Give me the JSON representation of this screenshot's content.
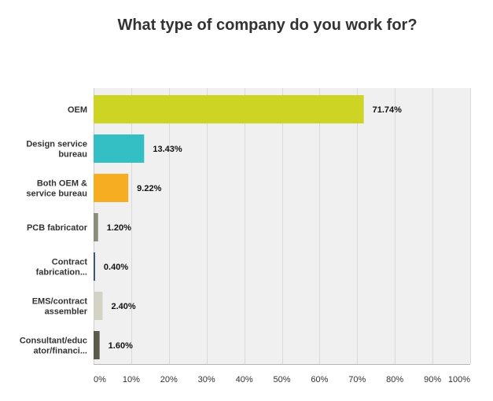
{
  "chart_data": {
    "type": "bar",
    "orientation": "horizontal",
    "title": "What type of company do you work for?",
    "categories": [
      [
        "OEM"
      ],
      [
        "Design service",
        "bureau"
      ],
      [
        "Both OEM &",
        "service bureau"
      ],
      [
        "PCB fabricator"
      ],
      [
        "Contract",
        "fabrication..."
      ],
      [
        "EMS/contract",
        "assembler"
      ],
      [
        "Consultant/educ",
        "ator/financi..."
      ]
    ],
    "values": [
      71.74,
      13.43,
      9.22,
      1.2,
      0.4,
      2.4,
      1.6
    ],
    "value_labels": [
      "71.74%",
      "13.43%",
      "9.22%",
      "1.20%",
      "0.40%",
      "2.40%",
      "1.60%"
    ],
    "colors": [
      "#cdd424",
      "#33bfc3",
      "#f7ad22",
      "#8b8d7c",
      "#2f4f7a",
      "#d2d3c4",
      "#5a5a4d"
    ],
    "xlim": [
      0,
      100
    ],
    "xticks": [
      0,
      10,
      20,
      30,
      40,
      50,
      60,
      70,
      80,
      90,
      100
    ],
    "xtick_labels": [
      "0%",
      "10%",
      "20%",
      "30%",
      "40%",
      "50%",
      "60%",
      "70%",
      "80%",
      "90%",
      "100%"
    ],
    "xlabel": "",
    "ylabel": "",
    "grid": true,
    "legend": "none",
    "plot_background": "#f0f0f0"
  }
}
